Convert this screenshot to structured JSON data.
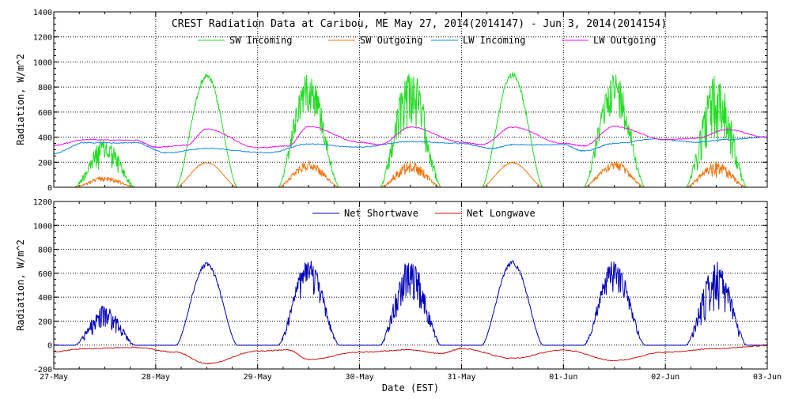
{
  "title": "CREST Radiation Data at Caribou, ME   May 27, 2014(2014147) - Jun  3, 2014(2014154)",
  "colors": {
    "sw_in": "#22dd22",
    "sw_out": "#ee7711",
    "lw_in": "#1188dd",
    "lw_out": "#ee11ee",
    "net_sw": "#0000bb",
    "net_lw": "#cc1111",
    "grid": "#000000"
  },
  "chart_data": [
    {
      "type": "line",
      "ylabel": "Radiation, W/m^2",
      "ylim": [
        0,
        1400
      ],
      "yticks": [
        0,
        200,
        400,
        600,
        800,
        1000,
        1200,
        1400
      ],
      "xlim": [
        0,
        7
      ],
      "x_unit": "days from 27-May 00:00 EST",
      "grid": true,
      "legend_position": "top",
      "series": [
        {
          "name": "SW Incoming",
          "key": "sw_in",
          "kind": "sw",
          "peaks": [
            380,
            905,
            920,
            940,
            920,
            905,
            880
          ],
          "noise": [
            0.6,
            0.05,
            0.35,
            0.5,
            0.05,
            0.35,
            0.6
          ]
        },
        {
          "name": "SW Outgoing",
          "key": "sw_out",
          "kind": "sw",
          "peaks": [
            85,
            200,
            205,
            205,
            200,
            205,
            200
          ],
          "noise": [
            0.5,
            0.05,
            0.35,
            0.5,
            0.05,
            0.35,
            0.6
          ]
        },
        {
          "name": "LW Incoming",
          "key": "lw_in",
          "kind": "lw",
          "knots": [
            [
              0,
              270
            ],
            [
              0.3,
              355
            ],
            [
              0.8,
              355
            ],
            [
              1.1,
              275
            ],
            [
              1.5,
              310
            ],
            [
              2.1,
              275
            ],
            [
              2.5,
              345
            ],
            [
              3.0,
              320
            ],
            [
              3.5,
              365
            ],
            [
              4.0,
              350
            ],
            [
              4.3,
              310
            ],
            [
              4.5,
              340
            ],
            [
              5.0,
              340
            ],
            [
              5.2,
              290
            ],
            [
              5.5,
              350
            ],
            [
              5.9,
              385
            ],
            [
              6.3,
              360
            ],
            [
              6.6,
              380
            ],
            [
              7.0,
              400
            ]
          ]
        },
        {
          "name": "LW Outgoing",
          "key": "lw_out",
          "kind": "lw",
          "knots": [
            [
              0,
              335
            ],
            [
              0.3,
              380
            ],
            [
              0.8,
              375
            ],
            [
              1.0,
              320
            ],
            [
              1.3,
              335
            ],
            [
              1.5,
              465
            ],
            [
              2.0,
              315
            ],
            [
              2.3,
              330
            ],
            [
              2.5,
              485
            ],
            [
              3.0,
              360
            ],
            [
              3.2,
              340
            ],
            [
              3.5,
              480
            ],
            [
              4.0,
              360
            ],
            [
              4.2,
              340
            ],
            [
              4.5,
              480
            ],
            [
              5.0,
              350
            ],
            [
              5.2,
              330
            ],
            [
              5.5,
              485
            ],
            [
              6.0,
              380
            ],
            [
              6.3,
              390
            ],
            [
              6.6,
              460
            ],
            [
              7.0,
              400
            ]
          ]
        }
      ]
    },
    {
      "type": "line",
      "xlabel": "Date (EST)",
      "ylabel": "Radiation, W/m^2",
      "ylim": [
        -200,
        1200
      ],
      "yticks": [
        -200,
        0,
        200,
        400,
        600,
        800,
        1000,
        1200
      ],
      "xlim": [
        0,
        7
      ],
      "x_unit": "days from 27-May 00:00 EST",
      "categories": [
        "27-May",
        "28-May",
        "29-May",
        "30-May",
        "31-May",
        "01-Jun",
        "02-Jun",
        "03-Jun"
      ],
      "grid": true,
      "legend_position": "top",
      "series": [
        {
          "name": "Net Shortwave",
          "key": "net_sw",
          "kind": "sw",
          "baseline": -2,
          "peaks": [
            320,
            690,
            700,
            720,
            705,
            700,
            680
          ],
          "noise": [
            0.6,
            0.05,
            0.35,
            0.5,
            0.05,
            0.35,
            0.6
          ]
        },
        {
          "name": "Net Longwave",
          "key": "net_lw",
          "kind": "lw",
          "knots": [
            [
              0,
              -55
            ],
            [
              0.3,
              -30
            ],
            [
              0.8,
              -20
            ],
            [
              1.2,
              -60
            ],
            [
              1.5,
              -155
            ],
            [
              2.0,
              -50
            ],
            [
              2.3,
              -40
            ],
            [
              2.5,
              -120
            ],
            [
              3.0,
              -60
            ],
            [
              3.5,
              -40
            ],
            [
              3.8,
              -70
            ],
            [
              4.0,
              -30
            ],
            [
              4.5,
              -110
            ],
            [
              5.0,
              -40
            ],
            [
              5.5,
              -130
            ],
            [
              6.0,
              -60
            ],
            [
              6.5,
              -30
            ],
            [
              7.0,
              -5
            ]
          ]
        }
      ]
    }
  ]
}
